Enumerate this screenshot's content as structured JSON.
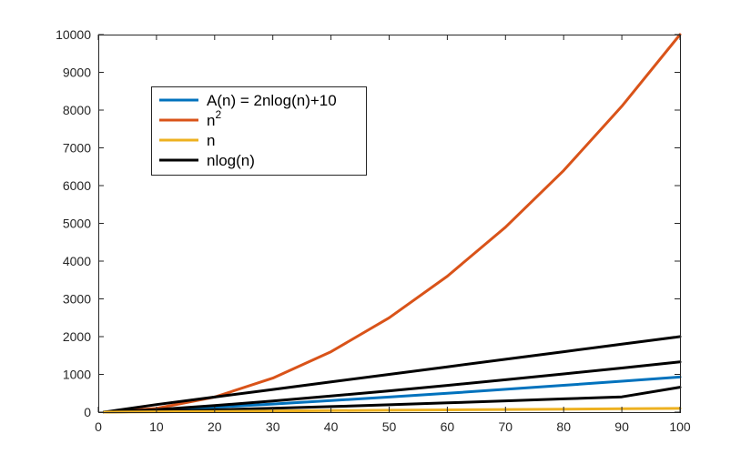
{
  "chart_data": {
    "type": "line",
    "title": "",
    "xlabel": "",
    "ylabel": "",
    "xlim": [
      0,
      100
    ],
    "ylim": [
      0,
      10000
    ],
    "x_ticks": [
      0,
      10,
      20,
      30,
      40,
      50,
      60,
      70,
      80,
      90,
      100
    ],
    "y_ticks": [
      0,
      1000,
      2000,
      3000,
      4000,
      5000,
      6000,
      7000,
      8000,
      9000,
      10000
    ],
    "x_tick_labels": [
      "0",
      "10",
      "20",
      "30",
      "40",
      "50",
      "60",
      "70",
      "80",
      "90",
      "100"
    ],
    "y_tick_labels": [
      "0",
      "1000",
      "2000",
      "3000",
      "4000",
      "5000",
      "6000",
      "7000",
      "8000",
      "9000",
      "10000"
    ],
    "grid": false,
    "legend_position": "top-left",
    "legend": [
      {
        "label": "A(n) = 2nlog(n)+10",
        "color": "#0072BD"
      },
      {
        "label_base": "n",
        "label_sup": "2",
        "color": "#D95319"
      },
      {
        "label": "n",
        "color": "#EDB120"
      },
      {
        "label": "nlog(n)",
        "color": "#000000"
      }
    ],
    "x": [
      1,
      10,
      20,
      30,
      40,
      50,
      60,
      70,
      80,
      90,
      100
    ],
    "series": [
      {
        "name": "A(n) = 2nlog(n)+10",
        "color": "#0072BD",
        "values": [
          10,
          56,
          130,
          215,
          305,
          400,
          500,
          605,
          710,
          820,
          930
        ]
      },
      {
        "name": "n^2",
        "color": "#D95319",
        "values": [
          1,
          100,
          400,
          900,
          1600,
          2500,
          3600,
          4900,
          6400,
          8100,
          10000
        ]
      },
      {
        "name": "n",
        "color": "#EDB120",
        "values": [
          1,
          10,
          20,
          30,
          40,
          50,
          60,
          70,
          80,
          90,
          100
        ]
      },
      {
        "name": "nlog(n)",
        "color": "#000000",
        "values": [
          0,
          66,
          173,
          294,
          426,
          564,
          709,
          858,
          1011,
          1168,
          1329
        ]
      },
      {
        "name": "",
        "color": "#000000",
        "values": [
          0,
          23,
          60,
          102,
          148,
          196,
          246,
          298,
          351,
          405,
          661
        ]
      },
      {
        "name": "",
        "color": "#000000",
        "values": [
          0,
          200,
          400,
          600,
          800,
          1000,
          1200,
          1400,
          1600,
          1800,
          2000
        ]
      }
    ]
  }
}
